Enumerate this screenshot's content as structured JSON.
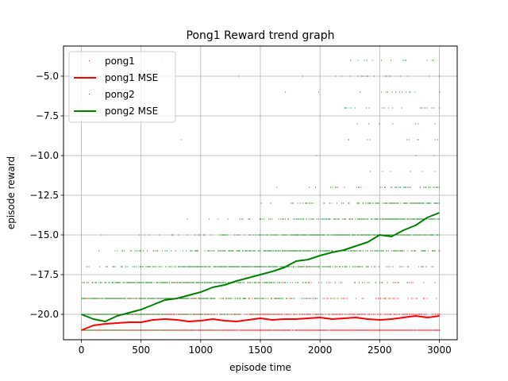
{
  "chart_data": {
    "type": "scatter",
    "title": "Pong1 Reward trend graph",
    "xlabel": "episode time",
    "ylabel": "episode reward",
    "xlim": [
      -150,
      3150
    ],
    "ylim": [
      -21.6,
      -3.1
    ],
    "grid": true,
    "legend_position": "top-left",
    "xticks": [
      0,
      500,
      1000,
      1500,
      2000,
      2500,
      3000
    ],
    "xtick_labels": [
      "0",
      "500",
      "1000",
      "1500",
      "2000",
      "2500",
      "3000"
    ],
    "yticks": [
      -20.0,
      -17.5,
      -15.0,
      -12.5,
      -10.0,
      -7.5,
      -5.0
    ],
    "ytick_labels": [
      "−20.0",
      "−17.5",
      "−15.0",
      "−12.5",
      "−10.0",
      "−7.5",
      "−5.0"
    ],
    "series": [
      {
        "name": "pong1",
        "kind": "points",
        "color": "#ff0000",
        "reward_levels": [
          -21,
          -20,
          -19,
          -18
        ],
        "x_range": [
          0,
          3000
        ]
      },
      {
        "name": "pong1 MSE",
        "kind": "line",
        "color": "#ff0000",
        "x": [
          0,
          100,
          200,
          300,
          400,
          500,
          600,
          700,
          800,
          900,
          1000,
          1100,
          1200,
          1300,
          1400,
          1500,
          1600,
          1700,
          1800,
          1900,
          2000,
          2100,
          2200,
          2300,
          2400,
          2500,
          2600,
          2700,
          2800,
          2900,
          3000
        ],
        "y": [
          -21.0,
          -20.7,
          -20.6,
          -20.55,
          -20.5,
          -20.5,
          -20.35,
          -20.3,
          -20.35,
          -20.45,
          -20.4,
          -20.3,
          -20.4,
          -20.45,
          -20.35,
          -20.25,
          -20.35,
          -20.3,
          -20.3,
          -20.25,
          -20.2,
          -20.3,
          -20.25,
          -20.2,
          -20.3,
          -20.35,
          -20.3,
          -20.2,
          -20.1,
          -20.2,
          -20.1
        ]
      },
      {
        "name": "pong2",
        "kind": "points",
        "color": "#008000",
        "reward_levels": [
          -21,
          -20,
          -19,
          -18,
          -17,
          -16,
          -15,
          -14,
          -13,
          -12,
          -11,
          -10,
          -9,
          -8,
          -7,
          -6,
          -5,
          -4
        ],
        "x_range": [
          0,
          3000
        ]
      },
      {
        "name": "pong2 MSE",
        "kind": "line",
        "color": "#008000",
        "x": [
          0,
          100,
          200,
          300,
          400,
          500,
          600,
          700,
          800,
          900,
          1000,
          1100,
          1200,
          1300,
          1400,
          1500,
          1600,
          1700,
          1800,
          1900,
          2000,
          2100,
          2200,
          2300,
          2400,
          2500,
          2600,
          2700,
          2800,
          2900,
          3000
        ],
        "y": [
          -20.0,
          -20.3,
          -20.45,
          -20.1,
          -19.9,
          -19.7,
          -19.4,
          -19.1,
          -19.0,
          -18.8,
          -18.6,
          -18.3,
          -18.15,
          -17.9,
          -17.7,
          -17.5,
          -17.3,
          -17.05,
          -16.65,
          -16.55,
          -16.3,
          -16.1,
          -15.95,
          -15.7,
          -15.45,
          -15.0,
          -15.1,
          -14.7,
          -14.4,
          -13.9,
          -13.6
        ]
      }
    ]
  }
}
